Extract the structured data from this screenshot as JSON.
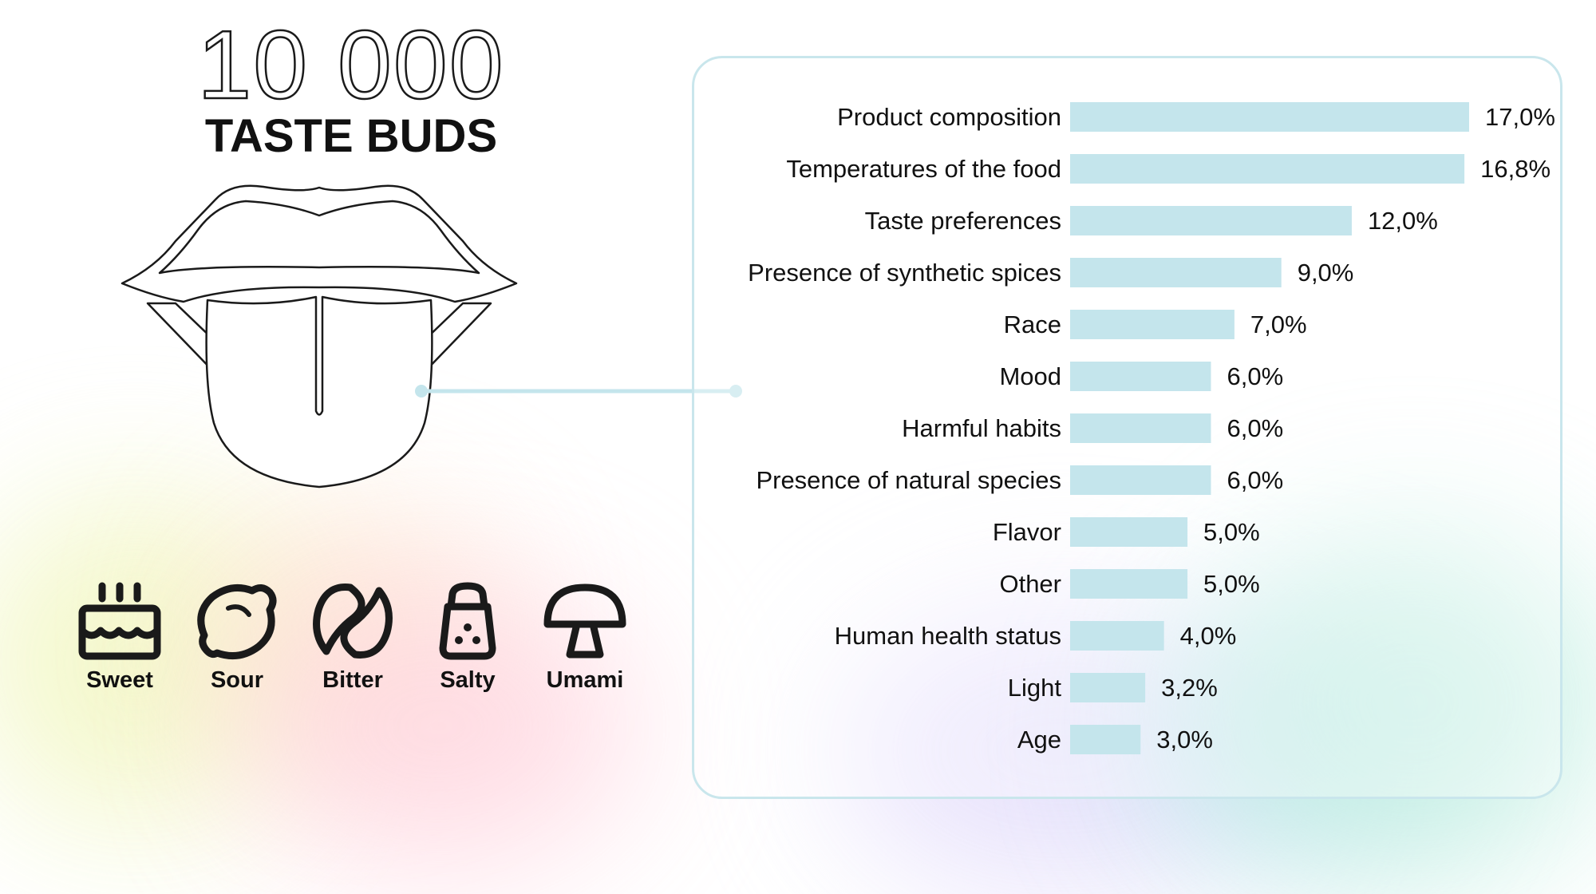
{
  "header": {
    "big_number": "10 000",
    "subtitle": "TASTE BUDS"
  },
  "tastes": [
    {
      "label": "Sweet",
      "icon": "cake-icon"
    },
    {
      "label": "Sour",
      "icon": "lemon-icon"
    },
    {
      "label": "Bitter",
      "icon": "coffee-bean-icon"
    },
    {
      "label": "Salty",
      "icon": "salt-shaker-icon"
    },
    {
      "label": "Umami",
      "icon": "mushroom-icon"
    }
  ],
  "colors": {
    "bar": "#c4e5ec",
    "panel_border": "#c9e6ec",
    "connector": "#c4e5ec",
    "text": "#111111"
  },
  "chart_data": {
    "type": "bar",
    "orientation": "horizontal",
    "categories": [
      "Product composition",
      "Temperatures of the food",
      "Taste preferences",
      "Presence of synthetic spices",
      "Race",
      "Mood",
      "Harmful habits",
      "Presence of natural species",
      "Flavor",
      "Other",
      "Human health status",
      "Light",
      "Age"
    ],
    "values": [
      17.0,
      16.8,
      12.0,
      9.0,
      7.0,
      6.0,
      6.0,
      6.0,
      5.0,
      5.0,
      4.0,
      3.2,
      3.0
    ],
    "value_labels": [
      "17,0%",
      "16,8%",
      "12,0%",
      "9,0%",
      "7,0%",
      "6,0%",
      "6,0%",
      "6,0%",
      "5,0%",
      "5,0%",
      "4,0%",
      "3,2%",
      "3,0%"
    ],
    "xlim": [
      0,
      17
    ],
    "grid": false,
    "legend": "none"
  }
}
